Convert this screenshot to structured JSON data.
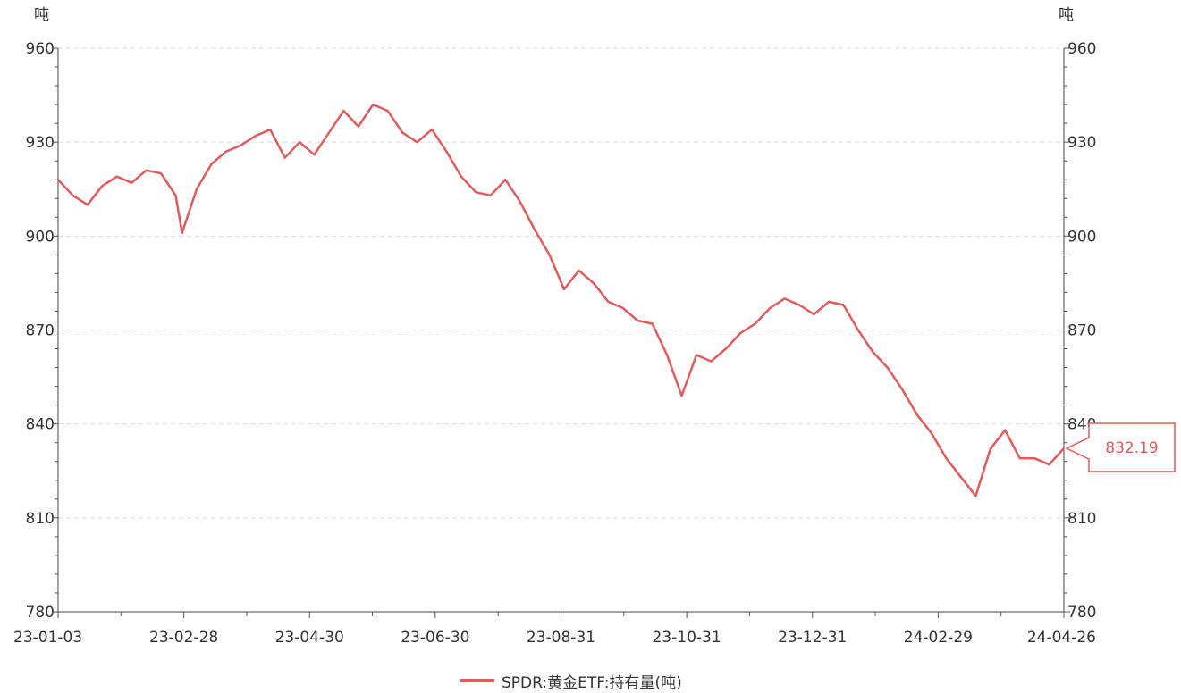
{
  "chart_data": {
    "type": "line",
    "title": "",
    "y_unit_left": "吨",
    "y_unit_right": "吨",
    "ylim": [
      780,
      960
    ],
    "y_ticks": [
      780,
      810,
      840,
      870,
      900,
      930,
      960
    ],
    "x_tick_labels": [
      "23-01-03",
      "23-02-28",
      "23-04-30",
      "23-06-30",
      "23-08-31",
      "23-10-31",
      "23-12-31",
      "24-02-29",
      "24-04-26"
    ],
    "grid": true,
    "legend_position": "bottom",
    "last_value_label": "832.19",
    "series": [
      {
        "name": "SPDR:黄金ETF:持有量(吨)",
        "color": "#e05a5e",
        "x": [
          "2023-01-03",
          "2023-01-10",
          "2023-01-17",
          "2023-01-24",
          "2023-01-31",
          "2023-02-07",
          "2023-02-14",
          "2023-02-21",
          "2023-02-28",
          "2023-03-03",
          "2023-03-10",
          "2023-03-17",
          "2023-03-24",
          "2023-03-31",
          "2023-04-07",
          "2023-04-14",
          "2023-04-21",
          "2023-04-28",
          "2023-05-05",
          "2023-05-12",
          "2023-05-19",
          "2023-05-26",
          "2023-06-02",
          "2023-06-09",
          "2023-06-16",
          "2023-06-23",
          "2023-06-30",
          "2023-07-07",
          "2023-07-14",
          "2023-07-21",
          "2023-07-28",
          "2023-08-04",
          "2023-08-11",
          "2023-08-18",
          "2023-08-25",
          "2023-09-01",
          "2023-09-08",
          "2023-09-15",
          "2023-09-22",
          "2023-09-29",
          "2023-10-06",
          "2023-10-13",
          "2023-10-20",
          "2023-10-27",
          "2023-11-03",
          "2023-11-10",
          "2023-11-17",
          "2023-11-24",
          "2023-12-01",
          "2023-12-08",
          "2023-12-15",
          "2023-12-22",
          "2023-12-29",
          "2024-01-05",
          "2024-01-12",
          "2024-01-19",
          "2024-01-26",
          "2024-02-02",
          "2024-02-09",
          "2024-02-16",
          "2024-02-23",
          "2024-03-01",
          "2024-03-08",
          "2024-03-15",
          "2024-03-22",
          "2024-03-29",
          "2024-04-05",
          "2024-04-12",
          "2024-04-19",
          "2024-04-26"
        ],
        "values": [
          918,
          913,
          910,
          916,
          919,
          917,
          921,
          920,
          913,
          901,
          915,
          923,
          927,
          929,
          932,
          934,
          925,
          930,
          926,
          933,
          940,
          935,
          942,
          940,
          933,
          930,
          934,
          927,
          919,
          914,
          913,
          918,
          911,
          902,
          894,
          883,
          889,
          885,
          879,
          877,
          873,
          872,
          862,
          849,
          862,
          860,
          864,
          869,
          872,
          877,
          880,
          878,
          875,
          879,
          878,
          870,
          863,
          858,
          851,
          843,
          837,
          829,
          823,
          817,
          832,
          838,
          829,
          829,
          827,
          832.19
        ]
      }
    ]
  }
}
